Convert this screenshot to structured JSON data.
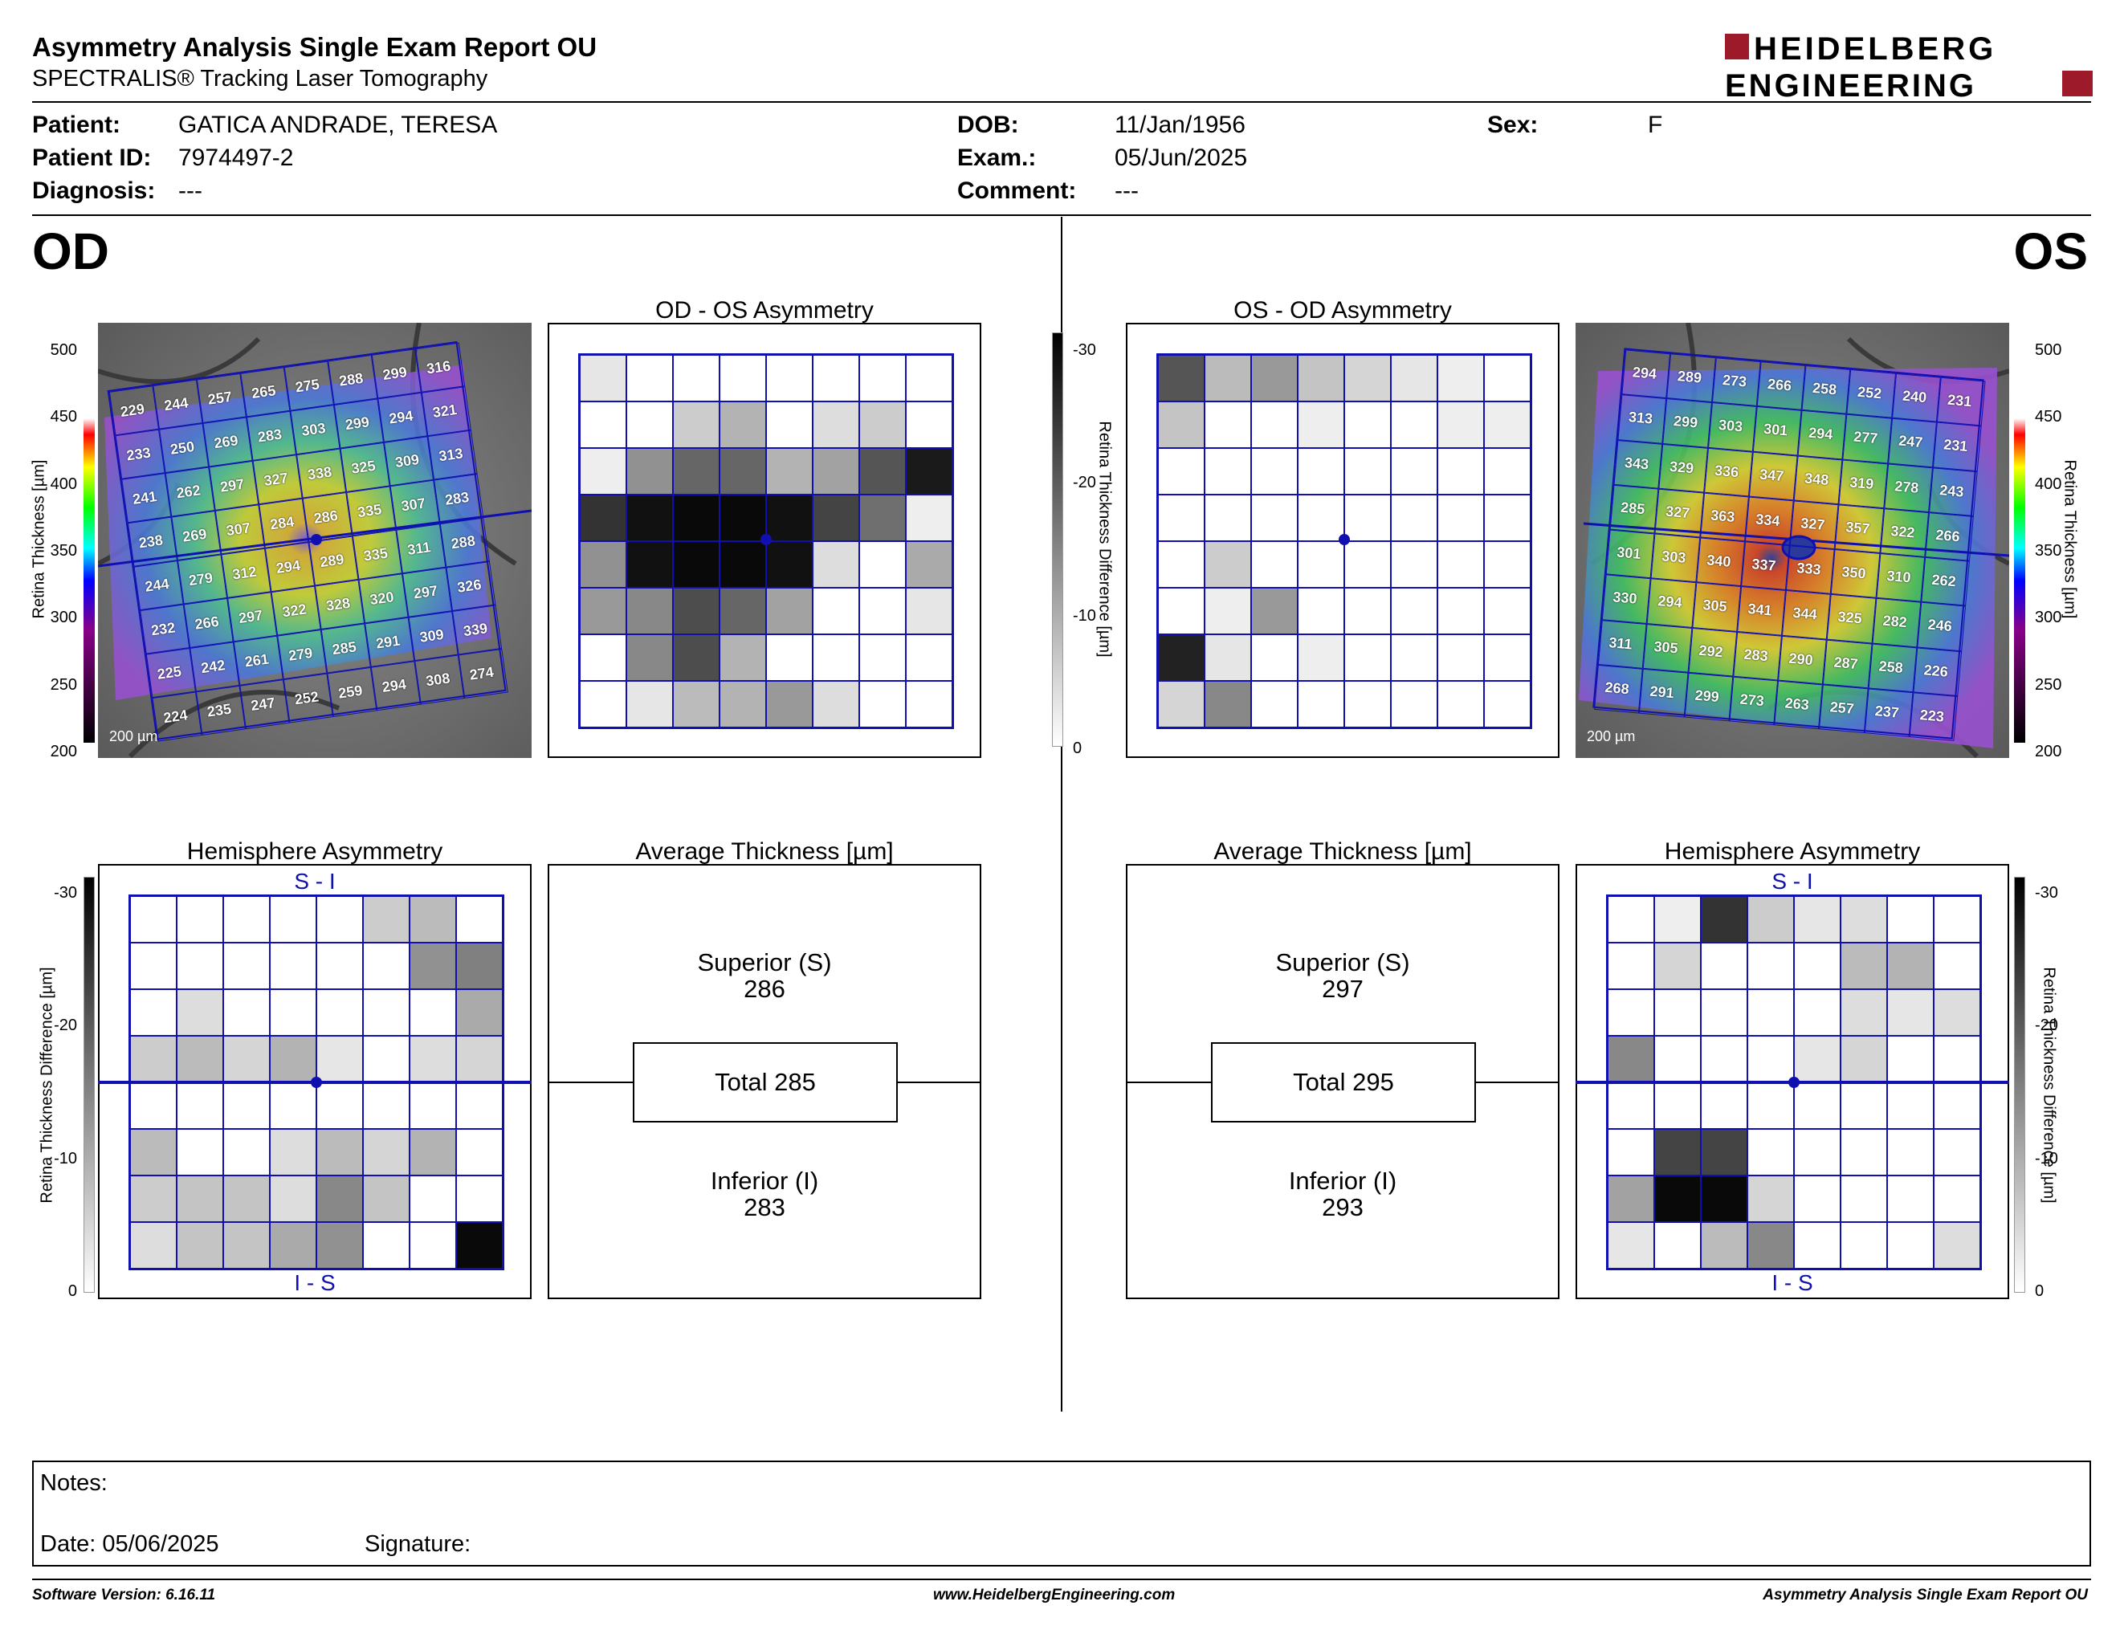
{
  "header": {
    "title": "Asymmetry Analysis Single Exam Report OU",
    "subtitle": "SPECTRALIS® Tracking Laser Tomography",
    "logo_line1": "HEIDELBERG",
    "logo_line2": "ENGINEERING"
  },
  "patient": {
    "patient_label": "Patient:",
    "patient_value": "GATICA ANDRADE, TERESA",
    "id_label": "Patient ID:",
    "id_value": "7974497-2",
    "diagnosis_label": "Diagnosis:",
    "diagnosis_value": "---",
    "dob_label": "DOB:",
    "dob_value": "11/Jan/1956",
    "exam_label": "Exam.:",
    "exam_value": "05/Jun/2025",
    "comment_label": "Comment:",
    "comment_value": "---",
    "sex_label": "Sex:",
    "sex_value": "F"
  },
  "od": {
    "eye": "OD",
    "asym_title": "OD - OS Asymmetry",
    "hemi_title": "Hemisphere Asymmetry",
    "avg_title": "Average Thickness [µm]",
    "superior_label": "Superior (S)",
    "superior_value": "286",
    "total_label": "Total 285",
    "inferior_label": "Inferior (I)",
    "inferior_value": "283",
    "scale_bar": "200 µm",
    "hemi_top": "S - I",
    "hemi_bottom": "I - S",
    "thickness": [
      [
        229,
        244,
        257,
        265,
        275,
        288,
        299,
        316
      ],
      [
        233,
        250,
        269,
        283,
        303,
        299,
        294,
        321
      ],
      [
        241,
        262,
        297,
        327,
        338,
        325,
        309,
        313
      ],
      [
        238,
        269,
        307,
        284,
        286,
        335,
        307,
        283
      ],
      [
        244,
        279,
        312,
        294,
        289,
        335,
        311,
        288
      ],
      [
        232,
        266,
        297,
        322,
        328,
        320,
        297,
        326
      ],
      [
        225,
        242,
        261,
        279,
        285,
        291,
        309,
        339
      ],
      [
        224,
        235,
        247,
        252,
        259,
        294,
        308,
        274
      ]
    ],
    "asym_grid": [
      [
        3,
        0,
        0,
        0,
        0,
        0,
        0,
        0
      ],
      [
        0,
        0,
        6,
        9,
        0,
        4,
        6,
        0
      ],
      [
        2,
        13,
        18,
        18,
        9,
        11,
        20,
        27
      ],
      [
        24,
        28,
        29,
        29,
        28,
        22,
        17,
        2
      ],
      [
        13,
        28,
        29,
        29,
        28,
        4,
        0,
        10
      ],
      [
        12,
        14,
        21,
        18,
        11,
        0,
        0,
        3
      ],
      [
        0,
        14,
        21,
        9,
        0,
        0,
        0,
        0
      ],
      [
        0,
        3,
        8,
        9,
        12,
        4,
        0,
        0
      ]
    ],
    "hemi_grid": [
      [
        0,
        0,
        0,
        0,
        0,
        6,
        8,
        0
      ],
      [
        0,
        0,
        0,
        0,
        0,
        0,
        13,
        15
      ],
      [
        0,
        4,
        0,
        0,
        0,
        0,
        0,
        10
      ],
      [
        6,
        8,
        5,
        9,
        3,
        0,
        4,
        5
      ],
      [
        0,
        0,
        0,
        0,
        0,
        0,
        0,
        0
      ],
      [
        8,
        0,
        0,
        4,
        8,
        5,
        9,
        0
      ],
      [
        6,
        7,
        7,
        4,
        14,
        7,
        0,
        0
      ],
      [
        4,
        7,
        7,
        10,
        13,
        0,
        0,
        29
      ]
    ]
  },
  "os": {
    "eye": "OS",
    "asym_title": "OS - OD Asymmetry",
    "hemi_title": "Hemisphere Asymmetry",
    "avg_title": "Average Thickness [µm]",
    "superior_label": "Superior (S)",
    "superior_value": "297",
    "total_label": "Total 295",
    "inferior_label": "Inferior (I)",
    "inferior_value": "293",
    "scale_bar": "200 µm",
    "hemi_top": "S - I",
    "hemi_bottom": "I - S",
    "thickness": [
      [
        294,
        289,
        273,
        266,
        258,
        252,
        240,
        231
      ],
      [
        313,
        299,
        303,
        301,
        294,
        277,
        247,
        231
      ],
      [
        343,
        329,
        336,
        347,
        348,
        319,
        278,
        243
      ],
      [
        285,
        327,
        363,
        334,
        327,
        357,
        322,
        266
      ],
      [
        301,
        303,
        340,
        337,
        333,
        350,
        310,
        262
      ],
      [
        330,
        294,
        305,
        341,
        344,
        325,
        282,
        246
      ],
      [
        311,
        305,
        292,
        283,
        290,
        287,
        258,
        226
      ],
      [
        268,
        291,
        299,
        273,
        263,
        257,
        237,
        223
      ]
    ],
    "asym_grid": [
      [
        20,
        8,
        12,
        7,
        5,
        3,
        2,
        0
      ],
      [
        7,
        0,
        0,
        2,
        0,
        0,
        2,
        2
      ],
      [
        0,
        0,
        0,
        0,
        0,
        0,
        0,
        0
      ],
      [
        0,
        0,
        0,
        0,
        0,
        0,
        0,
        0
      ],
      [
        0,
        6,
        0,
        0,
        0,
        0,
        0,
        0
      ],
      [
        0,
        2,
        12,
        0,
        0,
        0,
        0,
        0
      ],
      [
        26,
        3,
        0,
        2,
        0,
        0,
        0,
        0
      ],
      [
        5,
        14,
        0,
        0,
        0,
        0,
        0,
        0
      ]
    ],
    "hemi_grid": [
      [
        0,
        2,
        24,
        6,
        3,
        4,
        0,
        0
      ],
      [
        0,
        5,
        0,
        0,
        0,
        8,
        9,
        0
      ],
      [
        0,
        0,
        0,
        0,
        0,
        4,
        3,
        4
      ],
      [
        14,
        0,
        0,
        0,
        3,
        5,
        0,
        0
      ],
      [
        0,
        0,
        0,
        0,
        0,
        0,
        0,
        0
      ],
      [
        0,
        22,
        22,
        0,
        0,
        0,
        0,
        0
      ],
      [
        11,
        29,
        29,
        5,
        0,
        0,
        0,
        0
      ],
      [
        3,
        0,
        8,
        14,
        0,
        0,
        0,
        4
      ]
    ]
  },
  "scales": {
    "thickness_ticks": [
      "500",
      "450",
      "400",
      "350",
      "300",
      "250",
      "200"
    ],
    "diff_ticks": [
      "-30",
      "-20",
      "-10",
      "0"
    ],
    "thickness_label": "Retina  Thickness [µm]",
    "diff_label": "Retina Thickness Difference [µm]"
  },
  "colors": {
    "grid_blue": "#1010b0",
    "logo_red": "#9c1a2a"
  },
  "notes": {
    "notes_label": "Notes:",
    "date_label": "Date: 05/06/2025",
    "signature_label": "Signature:"
  },
  "footer": {
    "left": "Software Version: 6.16.11",
    "center": "www.HeidelbergEngineering.com",
    "right": "Asymmetry Analysis Single Exam Report OU"
  }
}
